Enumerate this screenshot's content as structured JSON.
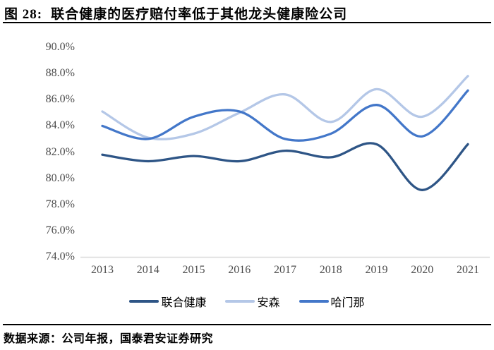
{
  "figure": {
    "label": "图 28:",
    "title": "联合健康的医疗赔付率低于其他龙头健康险公司"
  },
  "source_note": "数据来源：公司年报，国泰君安证券研究",
  "colors": {
    "unitedhealth_line": "#2E5586",
    "anthem_line": "#B4C7E7",
    "humana_line": "#4377C9",
    "axis_line": "#D9D9D9",
    "tick_text": "#4D4D4D",
    "rule": "#000000"
  },
  "chart_data": {
    "type": "line",
    "smooth": true,
    "grid": false,
    "legend_position": "bottom",
    "categories": [
      "2013",
      "2014",
      "2015",
      "2016",
      "2017",
      "2018",
      "2019",
      "2020",
      "2021"
    ],
    "series": [
      {
        "name": "联合健康",
        "color": "#2E5586",
        "values": [
          81.8,
          81.3,
          81.7,
          81.3,
          82.1,
          81.6,
          82.6,
          79.1,
          82.6
        ]
      },
      {
        "name": "安森",
        "color": "#B4C7E7",
        "values": [
          85.1,
          83.1,
          83.4,
          85.0,
          86.4,
          84.3,
          86.8,
          84.7,
          87.8
        ]
      },
      {
        "name": "哈门那",
        "color": "#4377C9",
        "values": [
          84.0,
          83.0,
          84.7,
          85.1,
          83.0,
          83.4,
          85.6,
          83.2,
          86.7
        ]
      }
    ],
    "ylabel": "",
    "xlabel": "",
    "ylim": [
      74,
      90
    ],
    "ytick_step": 2,
    "ytick_labels": [
      "90.0%",
      "88.0%",
      "86.0%",
      "84.0%",
      "82.0%",
      "80.0%",
      "78.0%",
      "76.0%",
      "74.0%"
    ]
  }
}
